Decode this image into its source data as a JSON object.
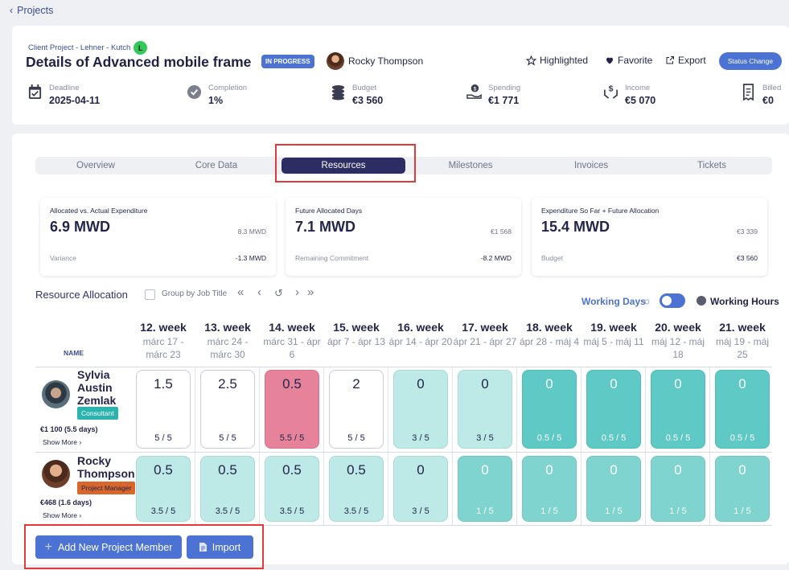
{
  "nav": {
    "back_label": "Projects"
  },
  "header": {
    "client": "Client Project - Lehner - Kutch",
    "client_badge": "L",
    "title": "Details of Advanced mobile frame",
    "status_badge": "IN PROGRESS",
    "owner": "Rocky Thompson",
    "actions": {
      "highlighted": "Highlighted",
      "favorite": "Favorite",
      "export": "Export",
      "status_change": "Status Change"
    },
    "stats": [
      {
        "label": "Deadline",
        "value": "2025-04-11",
        "icon": "calendar-icon"
      },
      {
        "label": "Completion",
        "value": "1%",
        "icon": "check-circle-icon"
      },
      {
        "label": "Budget",
        "value": "€3 560",
        "icon": "coins-icon"
      },
      {
        "label": "Spending",
        "value": "€1 771",
        "icon": "hand-coin-icon"
      },
      {
        "label": "Income",
        "value": "€5 070",
        "icon": "dollar-hands-icon"
      },
      {
        "label": "Billed",
        "value": "€0",
        "icon": "receipt-icon"
      }
    ]
  },
  "tabs": [
    "Overview",
    "Core Data",
    "Resources",
    "Milestones",
    "Invoices",
    "Tickets"
  ],
  "active_tab": "Resources",
  "metrics": [
    {
      "title": "Allocated vs. Actual Expenditure",
      "value": "6.9 MWD",
      "sub": "8.3 MWD",
      "label": "Variance",
      "label_value": "-1.3 MWD"
    },
    {
      "title": "Future Allocated Days",
      "value": "7.1 MWD",
      "sub": "€1 568",
      "label": "Remaining Commitment",
      "label_value": "-8.2 MWD"
    },
    {
      "title": "Expenditure So Far + Future Allocation",
      "value": "15.4 MWD",
      "sub": "€3 339",
      "label": "Budget",
      "label_value": "€3 560"
    }
  ],
  "allocation": {
    "title": "Resource Allocation",
    "group_label": "Group by Job Title",
    "working_days": "Working Days",
    "working_hours": "Working Hours",
    "name_header": "NAME",
    "weeks": [
      {
        "name": "12. week",
        "range": "márc 17 - márc 23"
      },
      {
        "name": "13. week",
        "range": "márc 24 - márc 30"
      },
      {
        "name": "14. week",
        "range": "márc 31 - ápr 6"
      },
      {
        "name": "15. week",
        "range": "ápr 7 - ápr 13"
      },
      {
        "name": "16. week",
        "range": "ápr 14 - ápr 20"
      },
      {
        "name": "17. week",
        "range": "ápr 21 - ápr 27"
      },
      {
        "name": "18. week",
        "range": "ápr 28 - máj 4"
      },
      {
        "name": "19. week",
        "range": "máj 5 - máj 11"
      },
      {
        "name": "20. week",
        "range": "máj 12 - máj 18"
      },
      {
        "name": "21. week",
        "range": "máj 19 - máj 25"
      }
    ],
    "members": [
      {
        "name": "Sylvia Austin Zemlak",
        "role": "Consultant",
        "role_color": "#2bb3ad",
        "cost": "€1 100 (5.5 days)",
        "show_more": "Show More ›",
        "cells": [
          {
            "v": "1.5",
            "f": "5 / 5",
            "s": "white"
          },
          {
            "v": "2.5",
            "f": "5 / 5",
            "s": "white"
          },
          {
            "v": "0.5",
            "f": "5.5 / 5",
            "s": "pink"
          },
          {
            "v": "2",
            "f": "5 / 5",
            "s": "white"
          },
          {
            "v": "0",
            "f": "3 / 5",
            "s": "light"
          },
          {
            "v": "0",
            "f": "3 / 5",
            "s": "light"
          },
          {
            "v": "0",
            "f": "0.5 / 5",
            "s": "teal"
          },
          {
            "v": "0",
            "f": "0.5 / 5",
            "s": "teal"
          },
          {
            "v": "0",
            "f": "0.5 / 5",
            "s": "teal"
          },
          {
            "v": "0",
            "f": "0.5 / 5",
            "s": "teal"
          }
        ]
      },
      {
        "name": "Rocky Thompson",
        "role": "Project Manager",
        "role_color": "#d9662b",
        "cost": "€468 (1.6 days)",
        "show_more": "Show More ›",
        "cells": [
          {
            "v": "0.5",
            "f": "3.5 / 5",
            "s": "light"
          },
          {
            "v": "0.5",
            "f": "3.5 / 5",
            "s": "light"
          },
          {
            "v": "0.5",
            "f": "3.5 / 5",
            "s": "light"
          },
          {
            "v": "0.5",
            "f": "3.5 / 5",
            "s": "light"
          },
          {
            "v": "0",
            "f": "3 / 5",
            "s": "light"
          },
          {
            "v": "0",
            "f": "1 / 5",
            "s": "teal2"
          },
          {
            "v": "0",
            "f": "1 / 5",
            "s": "teal2"
          },
          {
            "v": "0",
            "f": "1 / 5",
            "s": "teal2"
          },
          {
            "v": "0",
            "f": "1 / 5",
            "s": "teal2"
          },
          {
            "v": "0",
            "f": "1 / 5",
            "s": "teal2"
          }
        ]
      }
    ]
  },
  "buttons": {
    "add_member": "Add New Project Member",
    "import": "Import"
  }
}
